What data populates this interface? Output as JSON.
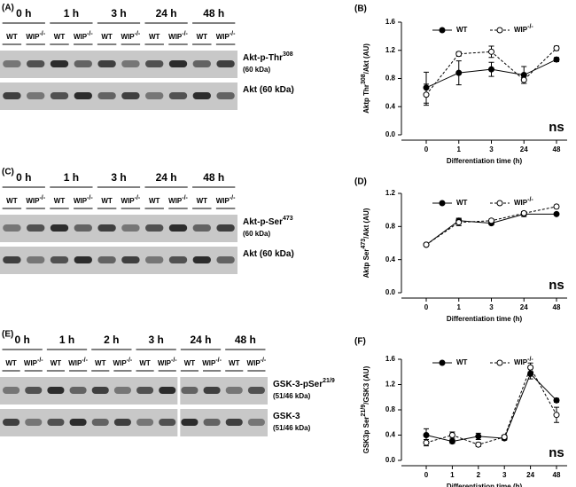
{
  "blots": [
    {
      "label": "(A)",
      "times": [
        "0 h",
        "1 h",
        "3 h",
        "24 h",
        "48 h"
      ],
      "genotypes": [
        {
          "text": "WT"
        },
        {
          "text": "WIP",
          "sup": "-/-"
        }
      ],
      "bands": [
        {
          "text": "Akt-p-Thr",
          "sup": "308",
          "sub": "(60 kDa)"
        },
        {
          "text": "Akt (60 kDa)"
        }
      ]
    },
    {
      "label": "(C)",
      "times": [
        "0 h",
        "1 h",
        "3 h",
        "24 h",
        "48 h"
      ],
      "genotypes": [
        {
          "text": "WT"
        },
        {
          "text": "WIP",
          "sup": "-/-"
        }
      ],
      "bands": [
        {
          "text": "Akt-p-Ser",
          "sup": "473",
          "sub": "(60 kDa)"
        },
        {
          "text": "Akt (60 kDa)"
        }
      ]
    },
    {
      "label": "(E)",
      "times": [
        "0 h",
        "1 h",
        "2 h",
        "3 h",
        "24 h",
        "48 h"
      ],
      "genotypes": [
        {
          "text": "WT"
        },
        {
          "text": "WIP",
          "sup": "-/-"
        }
      ],
      "bands": [
        {
          "text": "GSK-3-pSer",
          "sup": "21/9",
          "sub": "(51/46 kDa)"
        },
        {
          "text": "GSK-3",
          "sub": "(51/46 kDa)"
        }
      ]
    }
  ],
  "chart_data": [
    {
      "type": "line",
      "label": "(B)",
      "x_label": "Differentiation time (h)",
      "y_label": {
        "text": "Aktp Thr",
        "sup": "308",
        "post": "/Akt (AU)"
      },
      "categories": [
        "0",
        "1",
        "3",
        "24",
        "48"
      ],
      "ylim": [
        0,
        1.6
      ],
      "yticks": [
        {
          "value": 0,
          "label": "0.0"
        },
        {
          "value": 0.4,
          "label": "0.4"
        },
        {
          "value": 0.8,
          "label": "0.8"
        },
        {
          "value": 1.2,
          "label": "1.2"
        },
        {
          "value": 1.6,
          "label": "1.6"
        }
      ],
      "annotation": "ns",
      "series": [
        {
          "name": "WT",
          "color": "#000000",
          "style": "solid",
          "marker": "filled",
          "values": [
            0.67,
            0.88,
            0.93,
            0.85,
            1.07
          ],
          "errors": [
            0.22,
            0.17,
            0.1,
            0.12,
            0.03
          ]
        },
        {
          "name": "WIP",
          "name_sup": "-/-",
          "color": "#000000",
          "style": "dashed",
          "marker": "open",
          "values": [
            0.57,
            1.15,
            1.18,
            0.78,
            1.23
          ],
          "errors": [
            0.15,
            0.03,
            0.08,
            0.05,
            0.03
          ]
        }
      ]
    },
    {
      "type": "line",
      "label": "(D)",
      "x_label": "Differentiation time (h)",
      "y_label": {
        "text": "Aktp Ser",
        "sup": "473",
        "post": "/Akt (AU)"
      },
      "categories": [
        "0",
        "1",
        "3",
        "24",
        "48"
      ],
      "ylim": [
        0,
        1.2
      ],
      "yticks": [
        {
          "value": 0,
          "label": "0.0"
        },
        {
          "value": 0.4,
          "label": "0.4"
        },
        {
          "value": 0.8,
          "label": "0.8"
        },
        {
          "value": 1.2,
          "label": "1.2"
        }
      ],
      "annotation": "ns",
      "series": [
        {
          "name": "WT",
          "color": "#000000",
          "style": "solid",
          "marker": "filled",
          "values": [
            0.58,
            0.87,
            0.84,
            0.95,
            0.95
          ],
          "errors": [
            0.01,
            0.03,
            0.02,
            0.03,
            0.01
          ]
        },
        {
          "name": "WIP",
          "name_sup": "-/-",
          "color": "#000000",
          "style": "dashed",
          "marker": "open",
          "values": [
            0.58,
            0.85,
            0.87,
            0.96,
            1.04
          ],
          "errors": [
            0.01,
            0.04,
            0.02,
            0.02,
            0.02
          ]
        }
      ]
    },
    {
      "type": "line",
      "label": "(F)",
      "x_label": "Differentiation time (h)",
      "y_label": {
        "text": "GSK3p Ser",
        "sup": "21/9",
        "post": "/GSK3 (AU)"
      },
      "categories": [
        "0",
        "1",
        "2",
        "3",
        "24",
        "48"
      ],
      "ylim": [
        0,
        1.6
      ],
      "yticks": [
        {
          "value": 0,
          "label": "0.0"
        },
        {
          "value": 0.4,
          "label": "0.4"
        },
        {
          "value": 0.8,
          "label": "0.8"
        },
        {
          "value": 1.2,
          "label": "1.2"
        },
        {
          "value": 1.6,
          "label": "1.6"
        }
      ],
      "annotation": "ns",
      "series": [
        {
          "name": "WT",
          "color": "#000000",
          "style": "solid",
          "marker": "filled",
          "values": [
            0.4,
            0.3,
            0.38,
            0.35,
            1.37,
            0.95
          ],
          "errors": [
            0.1,
            0.03,
            0.05,
            0.03,
            0.08,
            0.03
          ]
        },
        {
          "name": "WIP",
          "name_sup": "-/-",
          "color": "#000000",
          "style": "dashed",
          "marker": "open",
          "values": [
            0.28,
            0.4,
            0.25,
            0.37,
            1.47,
            0.72
          ],
          "errors": [
            0.05,
            0.05,
            0.03,
            0.03,
            0.07,
            0.12
          ]
        }
      ]
    }
  ]
}
